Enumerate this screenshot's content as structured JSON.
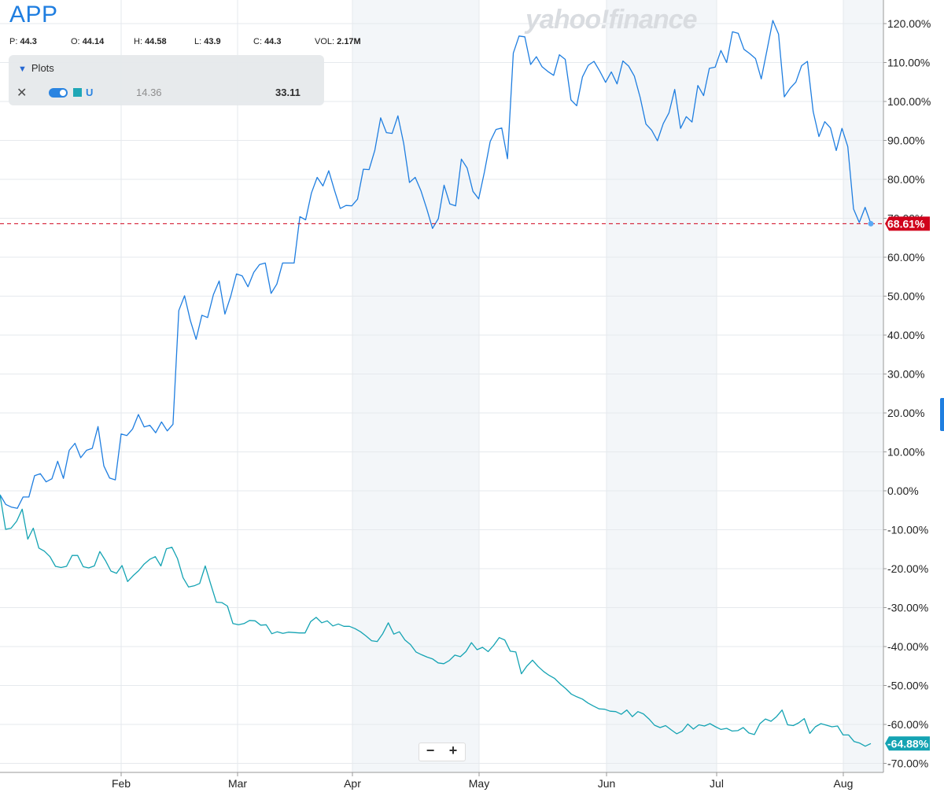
{
  "ticker": "APP",
  "watermark": "yahoo!finance",
  "ohlc": [
    {
      "label": "P:",
      "value": "44.3"
    },
    {
      "label": "O:",
      "value": "44.14"
    },
    {
      "label": "H:",
      "value": "44.58"
    },
    {
      "label": "L:",
      "value": "43.9"
    },
    {
      "label": "C:",
      "value": "44.3"
    },
    {
      "label": "VOL:",
      "value": "2.17M"
    }
  ],
  "plots_panel": {
    "header": "Plots",
    "row": {
      "symbol": "U",
      "value1": "14.36",
      "value2": "33.11",
      "close_glyph": "✕"
    }
  },
  "zoom": {
    "minus": "−",
    "plus": "+"
  },
  "colors": {
    "primary": "#1f7ee0",
    "comparison": "#14a3b3",
    "last_app_badge": "#d0021b",
    "last_u_badge": "#14a3b3"
  },
  "chart_data": {
    "type": "line",
    "y_unit": "%",
    "ylim": [
      -72,
      124
    ],
    "y_ticks": [
      "120.00%",
      "110.00%",
      "100.00%",
      "90.00%",
      "80.00%",
      "70.00%",
      "60.00%",
      "50.00%",
      "40.00%",
      "30.00%",
      "20.00%",
      "10.00%",
      "0.00%",
      "-10.00%",
      "-20.00%",
      "-30.00%",
      "-40.00%",
      "-50.00%",
      "-60.00%",
      "-70.00%"
    ],
    "x_ticks": [
      "Feb",
      "Mar",
      "Apr",
      "May",
      "Jun",
      "Jul",
      "Aug"
    ],
    "grid": true,
    "last_values": {
      "APP": "68.61%",
      "U": "-64.88%"
    },
    "series": [
      {
        "name": "APP",
        "values": [
          -1,
          -3.5,
          -4.2,
          -4.5,
          -1.6,
          -1.6,
          3.9,
          4.4,
          2.3,
          3.1,
          7.6,
          3.2,
          10.4,
          12.2,
          8.5,
          10.4,
          10.9,
          16.5,
          6.4,
          3.3,
          2.8,
          14.6,
          14.2,
          15.9,
          19.6,
          16.4,
          16.8,
          14.9,
          17.7,
          15.4,
          17.1,
          46.3,
          50.1,
          43.8,
          38.9,
          45.1,
          44.5,
          50.4,
          53.9,
          45.4,
          49.9,
          55.7,
          55.2,
          52.4,
          56.1,
          58.1,
          58.5,
          50.7,
          53.1,
          58.5,
          58.5,
          58.5,
          70.4,
          69.6,
          76.5,
          80.5,
          78.3,
          82.2,
          77.2,
          72.5,
          73.3,
          73.2,
          74.9,
          82.6,
          82.5,
          87.5,
          95.8,
          92,
          91.8,
          96.3,
          89.2,
          79.2,
          80.5,
          77,
          72.4,
          67.4,
          69.9,
          78.5,
          73.7,
          73.2,
          85.2,
          82.9,
          76.9,
          75,
          81.9,
          89.7,
          92.8,
          93.2,
          85.3,
          112.4,
          116.8,
          116.6,
          109.5,
          111.5,
          108.9,
          107.7,
          106.7,
          112,
          110.8,
          100.4,
          98.9,
          106.3,
          109.3,
          110.3,
          107.8,
          104.9,
          107.6,
          104.5,
          110.4,
          109.1,
          106.5,
          101,
          94.2,
          92.6,
          89.9,
          94.3,
          97.1,
          103.1,
          93.1,
          96.1,
          94.7,
          104.1,
          101.5,
          108.5,
          108.8,
          113.1,
          110,
          117.9,
          117.5,
          113.4,
          112.3,
          111,
          105.8,
          113.2,
          120.8,
          117.3,
          101.2,
          103.4,
          105,
          109.2,
          110.3,
          97.4,
          91,
          94.8,
          93.2,
          87.4,
          93.1,
          88.4,
          72.4,
          68.9,
          72.8,
          68.6
        ]
      },
      {
        "name": "U",
        "values": [
          -1,
          -9.9,
          -9.6,
          -7.8,
          -4.7,
          -12.4,
          -9.6,
          -14.7,
          -15.5,
          -16.9,
          -19.4,
          -19.7,
          -19.4,
          -16.6,
          -16.6,
          -19.5,
          -19.8,
          -19.3,
          -15.6,
          -17.9,
          -20.6,
          -21.2,
          -19.2,
          -23.3,
          -21.8,
          -20.5,
          -18.8,
          -17.6,
          -16.9,
          -19.3,
          -14.9,
          -14.5,
          -17.4,
          -22.3,
          -24.7,
          -24.4,
          -23.8,
          -19.3,
          -24,
          -28.6,
          -28.7,
          -29.6,
          -34.1,
          -34.4,
          -34.1,
          -33.3,
          -33.4,
          -34.5,
          -34.4,
          -36.7,
          -36.2,
          -36.6,
          -36.3,
          -36.4,
          -36.5,
          -36.5,
          -33.6,
          -32.5,
          -33.9,
          -33.4,
          -34.7,
          -34.2,
          -34.8,
          -34.8,
          -35.4,
          -36.2,
          -37.3,
          -38.5,
          -38.7,
          -36.7,
          -33.9,
          -36.8,
          -36.2,
          -38.3,
          -39.5,
          -41.4,
          -42.1,
          -42.7,
          -43.2,
          -44.2,
          -44.4,
          -43.6,
          -42.2,
          -42.6,
          -41.3,
          -39,
          -40.8,
          -40.2,
          -41.3,
          -39.7,
          -37.7,
          -38.3,
          -41.2,
          -41.4,
          -47,
          -45,
          -43.5,
          -45.1,
          -46.4,
          -47.4,
          -48.2,
          -49.6,
          -50.8,
          -52.2,
          -52.9,
          -53.5,
          -54.5,
          -55.3,
          -56,
          -56.1,
          -56.6,
          -56.7,
          -57.4,
          -56.3,
          -58,
          -56.7,
          -57.3,
          -58.6,
          -60.2,
          -60.8,
          -60.3,
          -61.4,
          -62.4,
          -61.7,
          -59.9,
          -61.2,
          -60.1,
          -60.4,
          -59.8,
          -60.6,
          -61.3,
          -61,
          -61.7,
          -61.6,
          -60.8,
          -62.2,
          -62.6,
          -59.8,
          -58.6,
          -59.2,
          -58,
          -56.3,
          -60.1,
          -60.3,
          -59.6,
          -58.5,
          -62.3,
          -60.6,
          -59.8,
          -60.2,
          -60.6,
          -60.4,
          -62.7,
          -62.7,
          -64.4,
          -64.8,
          -65.6,
          -64.9
        ]
      }
    ]
  }
}
